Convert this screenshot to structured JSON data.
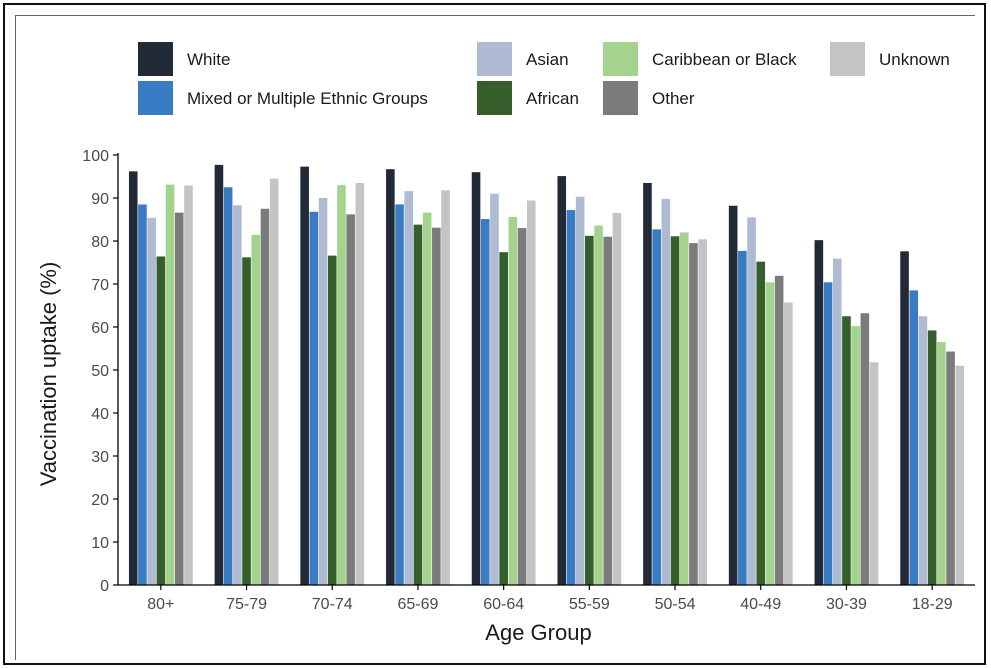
{
  "chart_data": {
    "type": "bar",
    "title": "",
    "xlabel": "Age Group",
    "ylabel": "Vaccination uptake (%)",
    "ylim": [
      0,
      100
    ],
    "yticks": [
      0,
      10,
      20,
      30,
      40,
      50,
      60,
      70,
      80,
      90,
      100
    ],
    "grid": false,
    "legend_position": "top",
    "categories": [
      "80+",
      "75-79",
      "70-74",
      "65-69",
      "60-64",
      "55-59",
      "50-54",
      "40-49",
      "30-39",
      "18-29"
    ],
    "series": [
      {
        "name": "White",
        "color": "#232a37",
        "values": [
          96.2,
          97.7,
          97.3,
          96.7,
          96.0,
          95.1,
          93.5,
          88.2,
          80.2,
          77.6
        ]
      },
      {
        "name": "Mixed or Multiple Ethnic Groups",
        "color": "#3a7cc4",
        "values": [
          88.5,
          92.5,
          86.8,
          88.5,
          85.1,
          87.2,
          82.7,
          77.7,
          70.4,
          68.5
        ]
      },
      {
        "name": "Asian",
        "color": "#aebbd3",
        "values": [
          85.4,
          88.3,
          90.0,
          91.6,
          91.0,
          90.3,
          89.8,
          85.5,
          75.9,
          62.5
        ]
      },
      {
        "name": "African",
        "color": "#355e2b",
        "values": [
          76.4,
          76.2,
          76.6,
          83.8,
          77.4,
          81.2,
          81.1,
          75.2,
          62.5,
          59.2
        ]
      },
      {
        "name": "Caribbean or Black",
        "color": "#a3d38c",
        "values": [
          93.1,
          81.4,
          93.0,
          86.6,
          85.6,
          83.6,
          82.0,
          70.4,
          60.2,
          56.5
        ]
      },
      {
        "name": "Other",
        "color": "#7b7b7b",
        "values": [
          86.6,
          87.5,
          86.2,
          83.1,
          83.0,
          81.0,
          79.5,
          71.9,
          63.2,
          54.3
        ]
      },
      {
        "name": "Unknown",
        "color": "#c4c4c4",
        "values": [
          92.9,
          94.5,
          93.5,
          91.8,
          89.4,
          86.5,
          80.4,
          65.7,
          51.8,
          51.0
        ]
      }
    ]
  }
}
